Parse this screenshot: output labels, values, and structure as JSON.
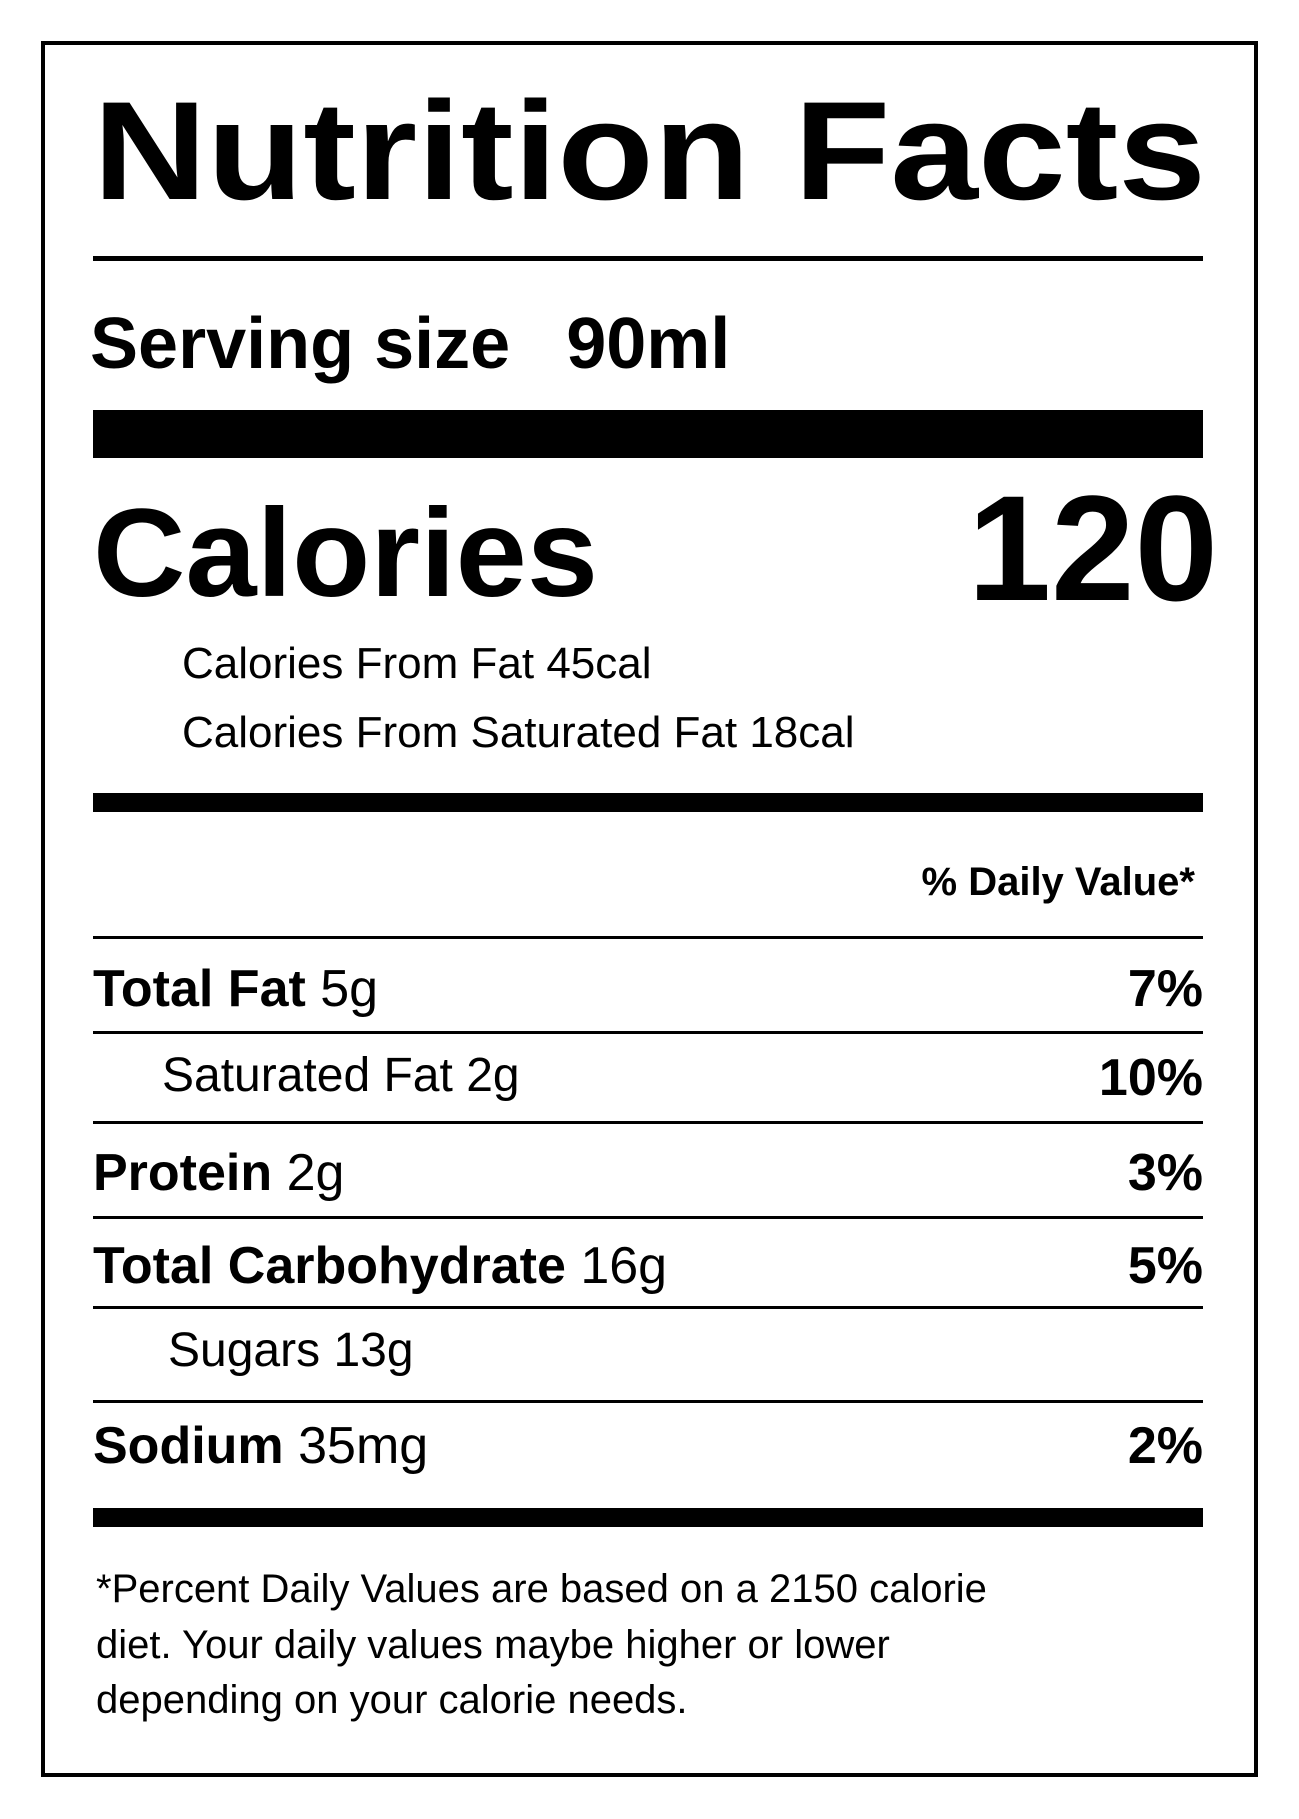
{
  "label": {
    "title": "Nutrition Facts",
    "serving_size_label": "Serving size",
    "serving_size_value": "90ml",
    "calories_label": "Calories",
    "calories_value": "120",
    "calories_sub": [
      {
        "label": "Calories From Fat",
        "value": "45cal"
      },
      {
        "label": "Calories From Saturated Fat",
        "value": "18cal"
      }
    ],
    "daily_value_header": "% Daily Value*",
    "nutrients": [
      {
        "name": "Total Fat",
        "amount": "5g",
        "percent": "7%"
      },
      {
        "name": "Saturated Fat",
        "amount": "2g",
        "percent": "10%"
      },
      {
        "name": "Protein",
        "amount": "2g",
        "percent": "3%"
      },
      {
        "name": "Total Carbohydrate",
        "amount": "16g",
        "percent": "5%"
      },
      {
        "name": "Sugars",
        "amount": "13g",
        "percent": ""
      },
      {
        "name": "Sodium",
        "amount": "35mg",
        "percent": "2%"
      }
    ],
    "footnote_lines": [
      "*Percent Daily Values are based on a 2150 calorie",
      "diet. Your daily values maybe higher or lower",
      "depending on your calorie needs."
    ]
  }
}
